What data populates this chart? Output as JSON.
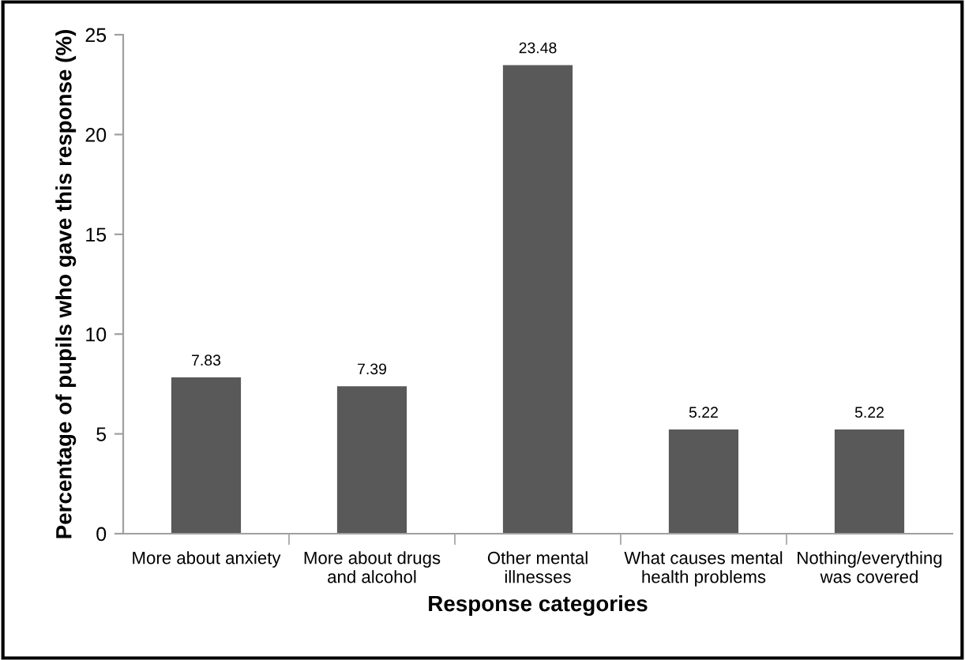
{
  "chart_data": {
    "type": "bar",
    "xlabel": "Response categories",
    "ylabel": "Percentage of pupils who gave this response (%)",
    "categories": [
      "More about anxiety",
      "More about drugs\nand alcohol",
      "Other mental\nillnesses",
      "What causes mental\nhealth problems",
      "Nothing/everything\nwas covered"
    ],
    "values": [
      7.83,
      7.39,
      23.48,
      5.22,
      5.22
    ],
    "color": "#595959",
    "data_labels": true,
    "ylim": [
      0,
      25
    ],
    "yticks": [
      0,
      5,
      10,
      15,
      20,
      25
    ],
    "grid": false,
    "legend": false
  }
}
